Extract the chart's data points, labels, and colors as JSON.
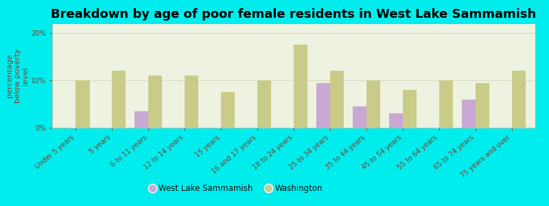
{
  "title": "Breakdown by age of poor female residents in West Lake Sammamish",
  "ylabel": "percentage\nbelow poverty\nlevel",
  "categories": [
    "Under 5 years",
    "5 years",
    "6 to 11 years",
    "12 to 14 years",
    "15 years",
    "16 and 17 years",
    "18 to 24 years",
    "25 to 34 years",
    "35 to 44 years",
    "45 to 54 years",
    "55 to 64 years",
    "65 to 74 years",
    "75 years and over"
  ],
  "wls_values": [
    0,
    0,
    3.5,
    0,
    0,
    0,
    0,
    9.5,
    4.5,
    3.0,
    0,
    6.0,
    0
  ],
  "wa_values": [
    10.0,
    12.0,
    11.0,
    11.0,
    7.5,
    10.0,
    17.5,
    12.0,
    10.0,
    8.0,
    10.0,
    9.5,
    12.0
  ],
  "wls_color": "#c9a8d4",
  "wa_color": "#c8cc88",
  "background_color": "#00eded",
  "plot_bg": "#eef2e0",
  "ylim": [
    0,
    22
  ],
  "yticks": [
    0,
    10,
    20
  ],
  "ytick_labels": [
    "0%",
    "10%",
    "20%"
  ],
  "bar_width": 0.38,
  "legend_wls": "West Lake Sammamish",
  "legend_wa": "Washington",
  "title_fontsize": 13,
  "axis_label_fontsize": 8,
  "tick_fontsize": 7.2,
  "label_color": "#7a4030",
  "grid_color": "#d8d8c0"
}
